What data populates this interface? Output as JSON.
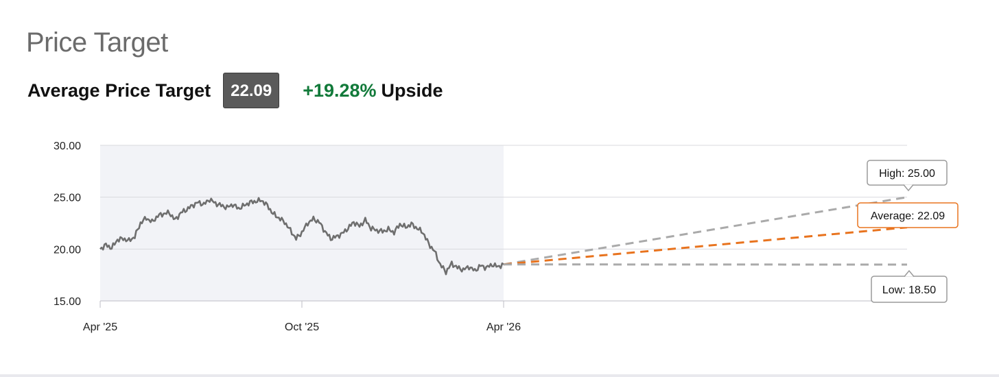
{
  "header": {
    "title": "Price Target",
    "avg_label": "Average Price Target",
    "avg_value": "22.09",
    "upside_pct": "+19.28%",
    "upside_word": "Upside"
  },
  "colors": {
    "history_line": "#6e6e6e",
    "history_band": "#f2f3f7",
    "high_low_line": "#aaaaaa",
    "average_line": "#e8731e",
    "upside_green": "#127a3a",
    "grid": "#d9d9de"
  },
  "chart_data": {
    "type": "line",
    "ylim": [
      15,
      30
    ],
    "yticks": [
      "15.00",
      "20.00",
      "25.00",
      "30.00"
    ],
    "xticks": [
      "Apr '25",
      "Oct '25",
      "Apr '26"
    ],
    "x_range": [
      "Apr '25",
      "Apr '27"
    ],
    "grid": true,
    "shaded_region": [
      "Apr '25",
      "Apr '26"
    ],
    "history": {
      "x_start": "Apr '25",
      "x_end": "Apr '26",
      "values": [
        20.0,
        20.4,
        20.1,
        20.9,
        21.0,
        20.8,
        21.2,
        22.5,
        23.0,
        22.6,
        23.2,
        23.4,
        23.5,
        22.8,
        23.5,
        23.8,
        24.2,
        24.5,
        24.3,
        24.8,
        24.4,
        24.2,
        24.0,
        24.3,
        23.9,
        24.2,
        24.5,
        24.6,
        24.7,
        24.2,
        23.4,
        23.0,
        22.6,
        21.8,
        21.0,
        21.6,
        22.5,
        22.9,
        22.6,
        21.7,
        21.0,
        21.2,
        21.5,
        22.0,
        22.6,
        22.2,
        22.8,
        22.0,
        21.8,
        21.7,
        21.9,
        21.6,
        22.4,
        22.1,
        22.4,
        22.0,
        21.6,
        20.5,
        19.8,
        18.5,
        17.8,
        18.6,
        18.2,
        18.0,
        18.3,
        17.9,
        18.4,
        18.2,
        18.5,
        18.3
      ],
      "last": 18.52
    },
    "targets": [
      {
        "label": "High: 25.00",
        "value": 25.0
      },
      {
        "label": "Average: 22.09",
        "value": 22.09
      },
      {
        "label": "Low: 18.50",
        "value": 18.5
      }
    ],
    "target_date": "Apr '27"
  }
}
